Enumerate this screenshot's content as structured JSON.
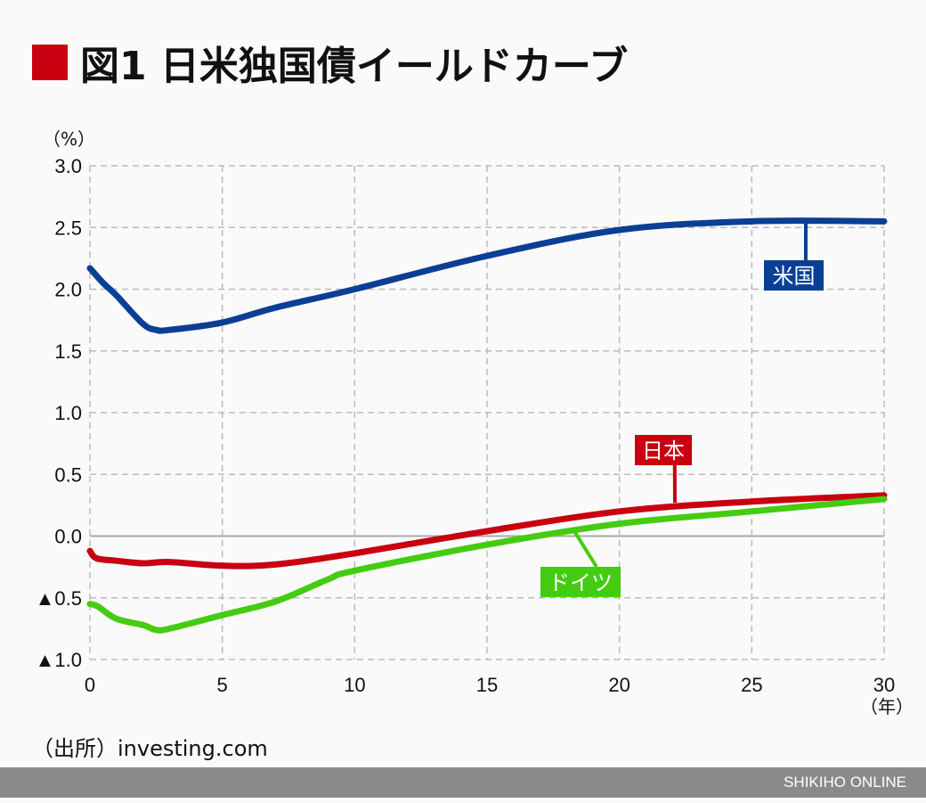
{
  "header": {
    "title": "図1 日米独国債イールドカーブ"
  },
  "source": "（出所）investing.com",
  "footer": {
    "brand": "SHIKIHO ONLINE"
  },
  "chart_data": {
    "type": "line",
    "title": "図1 日米独国債イールドカーブ",
    "ylabel": "（%）",
    "xlabel": "（年）",
    "xlim": [
      0,
      30
    ],
    "ylim": [
      -1.0,
      3.0
    ],
    "xticks": [
      0,
      5,
      10,
      15,
      20,
      25,
      30
    ],
    "yticks": [
      {
        "v": 3.0,
        "label": "3.0"
      },
      {
        "v": 2.5,
        "label": "2.5"
      },
      {
        "v": 2.0,
        "label": "2.0"
      },
      {
        "v": 1.5,
        "label": "1.5"
      },
      {
        "v": 1.0,
        "label": "1.0"
      },
      {
        "v": 0.5,
        "label": "0.5"
      },
      {
        "v": 0.0,
        "label": "0.0"
      },
      {
        "v": -0.5,
        "label": "▲0.5"
      },
      {
        "v": -1.0,
        "label": "▲1.0"
      }
    ],
    "grid": true,
    "series": [
      {
        "name": "米国",
        "color": "#0a3f95",
        "x": [
          0,
          0.5,
          1,
          2,
          2.5,
          3,
          5,
          7,
          10,
          15,
          20,
          25,
          30
        ],
        "y": [
          2.17,
          2.05,
          1.95,
          1.72,
          1.67,
          1.67,
          1.73,
          1.85,
          2.0,
          2.27,
          2.48,
          2.55,
          2.55
        ]
      },
      {
        "name": "日本",
        "color": "#c8000f",
        "x": [
          0,
          0.25,
          1,
          2,
          3,
          5,
          7,
          10,
          15,
          20,
          25,
          30
        ],
        "y": [
          -0.12,
          -0.18,
          -0.2,
          -0.22,
          -0.21,
          -0.24,
          -0.23,
          -0.14,
          0.04,
          0.2,
          0.28,
          0.33
        ]
      },
      {
        "name": "ドイツ",
        "color": "#44cc11",
        "x": [
          0,
          0.3,
          1,
          2,
          2.5,
          3,
          5,
          7,
          9,
          10,
          15,
          20,
          25,
          30
        ],
        "y": [
          -0.55,
          -0.57,
          -0.67,
          -0.72,
          -0.76,
          -0.75,
          -0.64,
          -0.53,
          -0.35,
          -0.28,
          -0.07,
          0.1,
          0.2,
          0.3
        ]
      }
    ]
  }
}
